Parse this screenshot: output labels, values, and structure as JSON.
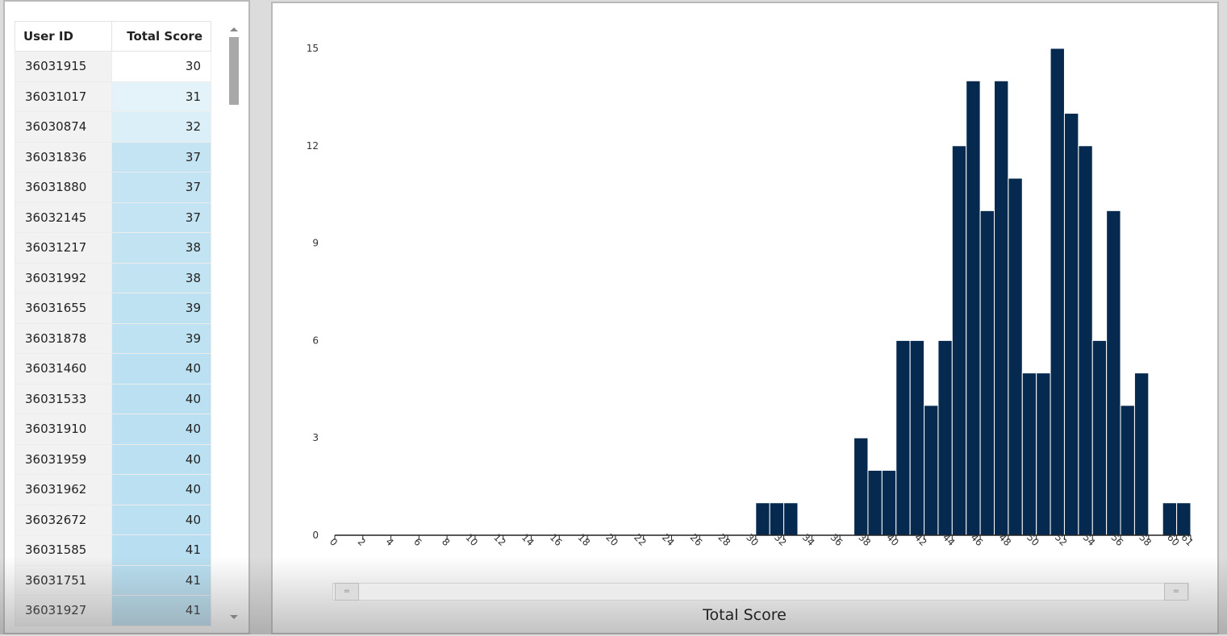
{
  "table": {
    "headers": {
      "user_id": "User ID",
      "total_score": "Total Score"
    },
    "rows": [
      {
        "user_id": "36031915",
        "score": "30"
      },
      {
        "user_id": "36031017",
        "score": "31"
      },
      {
        "user_id": "36030874",
        "score": "32"
      },
      {
        "user_id": "36031836",
        "score": "37"
      },
      {
        "user_id": "36031880",
        "score": "37"
      },
      {
        "user_id": "36032145",
        "score": "37"
      },
      {
        "user_id": "36031217",
        "score": "38"
      },
      {
        "user_id": "36031992",
        "score": "38"
      },
      {
        "user_id": "36031655",
        "score": "39"
      },
      {
        "user_id": "36031878",
        "score": "39"
      },
      {
        "user_id": "36031460",
        "score": "40"
      },
      {
        "user_id": "36031533",
        "score": "40"
      },
      {
        "user_id": "36031910",
        "score": "40"
      },
      {
        "user_id": "36031959",
        "score": "40"
      },
      {
        "user_id": "36031962",
        "score": "40"
      },
      {
        "user_id": "36032672",
        "score": "40"
      },
      {
        "user_id": "36031585",
        "score": "41"
      },
      {
        "user_id": "36031751",
        "score": "41"
      },
      {
        "user_id": "36031927",
        "score": "41"
      }
    ],
    "score_color_low": "#ffffff",
    "score_color_high": "#b6def0"
  },
  "range_handles": {
    "left": "=",
    "right": "="
  },
  "chart_data": {
    "type": "bar",
    "xlabel": "Total Score",
    "ylabel": "",
    "ylim": [
      0,
      15
    ],
    "xlim": [
      0,
      61
    ],
    "yticks": [
      "0",
      "3",
      "6",
      "9",
      "12",
      "15"
    ],
    "xticks": [
      "0",
      "2",
      "4",
      "6",
      "8",
      "10",
      "12",
      "14",
      "16",
      "18",
      "20",
      "22",
      "24",
      "26",
      "28",
      "30",
      "32",
      "34",
      "36",
      "38",
      "40",
      "42",
      "44",
      "46",
      "48",
      "50",
      "52",
      "54",
      "56",
      "58",
      "60",
      "61"
    ],
    "bar_color": "#062a4f",
    "bins": [
      {
        "x": 30,
        "count": 1
      },
      {
        "x": 31,
        "count": 1
      },
      {
        "x": 32,
        "count": 1
      },
      {
        "x": 37,
        "count": 3
      },
      {
        "x": 38,
        "count": 2
      },
      {
        "x": 39,
        "count": 2
      },
      {
        "x": 40,
        "count": 6
      },
      {
        "x": 41,
        "count": 6
      },
      {
        "x": 42,
        "count": 4
      },
      {
        "x": 43,
        "count": 6
      },
      {
        "x": 44,
        "count": 12
      },
      {
        "x": 45,
        "count": 14
      },
      {
        "x": 46,
        "count": 10
      },
      {
        "x": 47,
        "count": 14
      },
      {
        "x": 48,
        "count": 11
      },
      {
        "x": 49,
        "count": 5
      },
      {
        "x": 50,
        "count": 5
      },
      {
        "x": 51,
        "count": 15
      },
      {
        "x": 52,
        "count": 13
      },
      {
        "x": 53,
        "count": 12
      },
      {
        "x": 54,
        "count": 6
      },
      {
        "x": 55,
        "count": 10
      },
      {
        "x": 56,
        "count": 4
      },
      {
        "x": 57,
        "count": 5
      },
      {
        "x": 59,
        "count": 1
      },
      {
        "x": 60,
        "count": 1
      }
    ]
  }
}
